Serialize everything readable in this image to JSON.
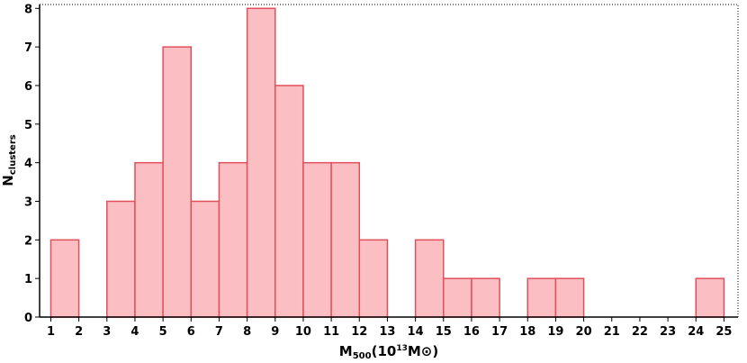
{
  "chart_data": {
    "type": "bar",
    "subtype": "histogram",
    "bins": [
      {
        "from": 1,
        "to": 2,
        "count": 2
      },
      {
        "from": 2,
        "to": 3,
        "count": 0
      },
      {
        "from": 3,
        "to": 4,
        "count": 3
      },
      {
        "from": 4,
        "to": 5,
        "count": 4
      },
      {
        "from": 5,
        "to": 6,
        "count": 7
      },
      {
        "from": 6,
        "to": 7,
        "count": 3
      },
      {
        "from": 7,
        "to": 8,
        "count": 4
      },
      {
        "from": 8,
        "to": 9,
        "count": 8
      },
      {
        "from": 9,
        "to": 10,
        "count": 6
      },
      {
        "from": 10,
        "to": 11,
        "count": 4
      },
      {
        "from": 11,
        "to": 12,
        "count": 4
      },
      {
        "from": 12,
        "to": 13,
        "count": 2
      },
      {
        "from": 13,
        "to": 14,
        "count": 0
      },
      {
        "from": 14,
        "to": 15,
        "count": 2
      },
      {
        "from": 15,
        "to": 16,
        "count": 1
      },
      {
        "from": 16,
        "to": 17,
        "count": 1
      },
      {
        "from": 17,
        "to": 18,
        "count": 0
      },
      {
        "from": 18,
        "to": 19,
        "count": 1
      },
      {
        "from": 19,
        "to": 20,
        "count": 1
      },
      {
        "from": 20,
        "to": 21,
        "count": 0
      },
      {
        "from": 21,
        "to": 22,
        "count": 0
      },
      {
        "from": 22,
        "to": 23,
        "count": 0
      },
      {
        "from": 23,
        "to": 24,
        "count": 0
      },
      {
        "from": 24,
        "to": 25,
        "count": 1
      }
    ],
    "xlim": [
      0.6,
      25.5
    ],
    "ylim": [
      0,
      8.1
    ],
    "xticks": [
      1,
      2,
      3,
      4,
      5,
      6,
      7,
      8,
      9,
      10,
      11,
      12,
      13,
      14,
      15,
      16,
      17,
      18,
      19,
      20,
      21,
      22,
      23,
      24,
      25
    ],
    "yticks": [
      0,
      1,
      2,
      3,
      4,
      5,
      6,
      7,
      8
    ],
    "xlabel": {
      "main": "M",
      "sub": "500",
      "open": "(10",
      "sup": "13",
      "unit": "M⊙)"
    },
    "ylabel": {
      "main": "N",
      "sub": "clusters"
    },
    "grid": false,
    "legend": "none",
    "colors": {
      "bar_fill": "#fbbfc3",
      "bar_stroke": "#e0505a",
      "axis": "#000000"
    }
  }
}
